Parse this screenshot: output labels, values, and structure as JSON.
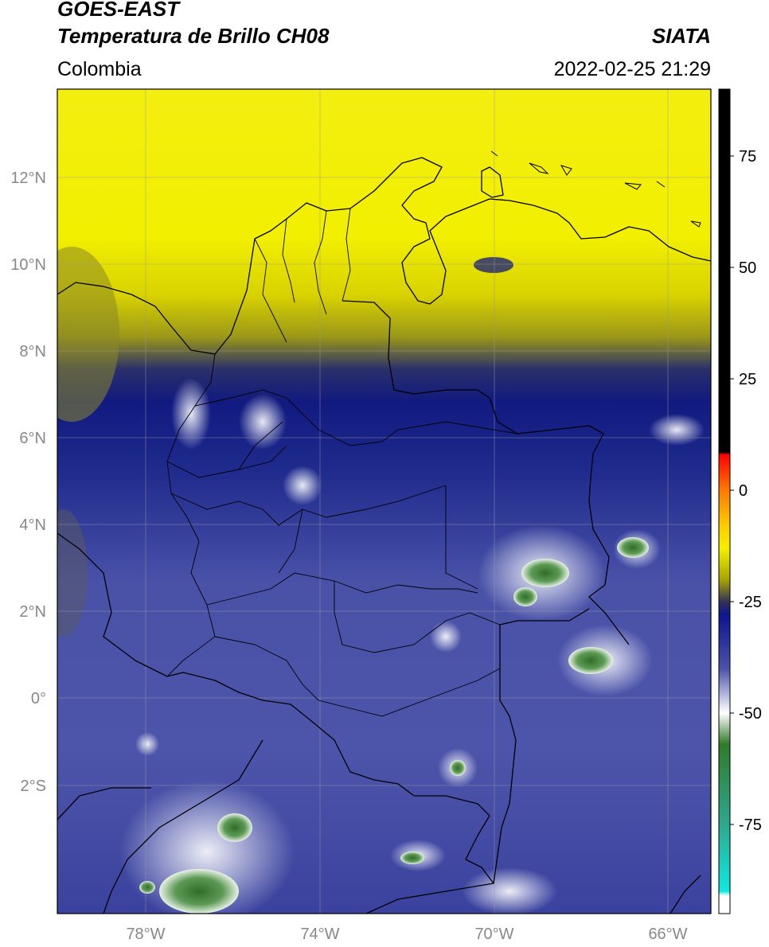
{
  "header": {
    "title_line1": "GOES-EAST",
    "title_line2": "Temperatura de Brillo CH08",
    "region": "Colombia",
    "org": "SIATA",
    "datetime": "2022-02-25 21:29"
  },
  "axes": {
    "lat_labels": [
      "12°N",
      "10°N",
      "8°N",
      "6°N",
      "4°N",
      "2°N",
      "0°",
      "2°S"
    ],
    "lon_labels": [
      "78°W",
      "74°W",
      "70°W",
      "66°W"
    ]
  },
  "colorbar": {
    "tick_labels": [
      "75",
      "50",
      "25",
      "0",
      "-25",
      "-50",
      "-75"
    ],
    "tick_values": [
      75,
      50,
      25,
      0,
      -25,
      -50,
      -75
    ],
    "range": [
      -95,
      90
    ],
    "stops": [
      {
        "v": 90,
        "c": "#000000"
      },
      {
        "v": 8.5,
        "c": "#000000"
      },
      {
        "v": 8,
        "c": "#ff0000"
      },
      {
        "v": 0,
        "c": "#ff7a00"
      },
      {
        "v": -8,
        "c": "#ffcc00"
      },
      {
        "v": -13,
        "c": "#f4f000"
      },
      {
        "v": -20,
        "c": "#aaa400"
      },
      {
        "v": -25,
        "c": "#333355"
      },
      {
        "v": -28,
        "c": "#0d1590"
      },
      {
        "v": -40,
        "c": "#4a52a8"
      },
      {
        "v": -50,
        "c": "#ffffff"
      },
      {
        "v": -57,
        "c": "#2f7a2a"
      },
      {
        "v": -75,
        "c": "#2ea890"
      },
      {
        "v": -90,
        "c": "#10e8e0"
      },
      {
        "v": -91,
        "c": "#ffffff"
      },
      {
        "v": -95,
        "c": "#ffffff"
      }
    ]
  },
  "map": {
    "extent": {
      "lon": [
        -80,
        -65
      ],
      "lat": [
        -5,
        14
      ]
    },
    "gridlines": {
      "lons": [
        -78,
        -74,
        -70,
        -66
      ],
      "lats": [
        12,
        10,
        8,
        6,
        4,
        2,
        0,
        -2
      ]
    },
    "colors": {
      "yellow": "#f2ef00",
      "olive": "#8c8a1a",
      "navy": "#111a80",
      "blue": "#3c45a0",
      "land_border": "#000000"
    }
  }
}
